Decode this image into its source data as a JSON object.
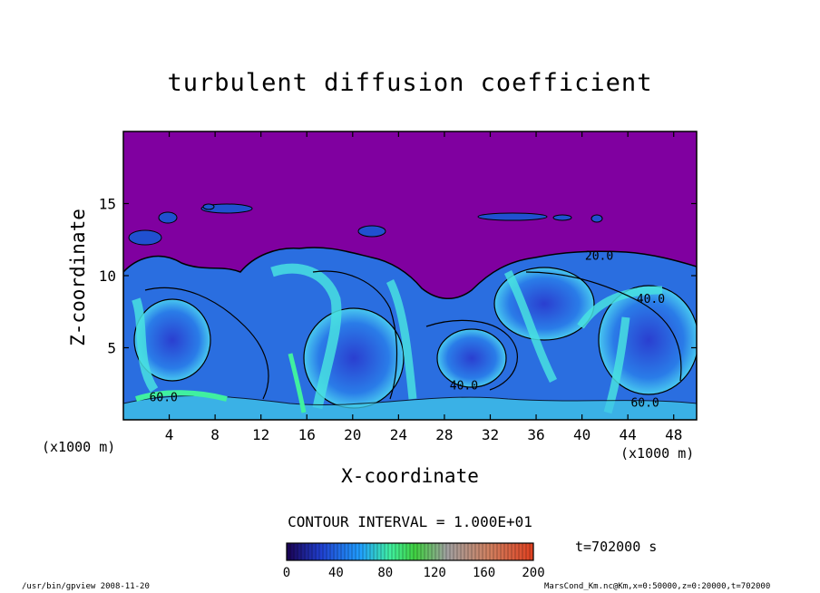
{
  "chart_data": {
    "type": "heatmap",
    "title": "turbulent diffusion coefficient",
    "xlabel": "X-coordinate",
    "ylabel": "Z-coordinate",
    "x_unit": "(x1000 m)",
    "x_unit_right": "(x1000 m)",
    "xlim": [
      0,
      50
    ],
    "ylim": [
      0,
      20
    ],
    "x_ticks": [
      4,
      8,
      12,
      16,
      20,
      24,
      28,
      32,
      36,
      40,
      44,
      48
    ],
    "y_ticks": [
      5,
      10,
      15
    ],
    "contour_interval_text": "CONTOUR INTERVAL = 1.000E+01",
    "contour_labels": [
      {
        "text": "20.0",
        "x": 41.5,
        "y": 11.1
      },
      {
        "text": "40.0",
        "x": 46.0,
        "y": 8.1
      },
      {
        "text": "60.0",
        "x": 3.5,
        "y": 1.3
      },
      {
        "text": "60.0",
        "x": 45.5,
        "y": 0.9
      },
      {
        "text": "40.0",
        "x": 29.7,
        "y": 2.1
      }
    ],
    "colorbar": {
      "min": 0,
      "max": 200,
      "ticks": [
        0,
        40,
        80,
        120,
        160,
        200
      ],
      "colors": [
        "#1a0050",
        "#2040d0",
        "#20a0ff",
        "#40f0a0",
        "#40d040",
        "#a0a0a0",
        "#d08060",
        "#e04020"
      ]
    },
    "background_color": "#8000a0",
    "time_label": "t=702000 s"
  },
  "footer": {
    "left": "/usr/bin/gpview  2008-11-20",
    "right": "MarsCond_Km.nc@Km,x=0:50000,z=0:20000,t=702000"
  }
}
